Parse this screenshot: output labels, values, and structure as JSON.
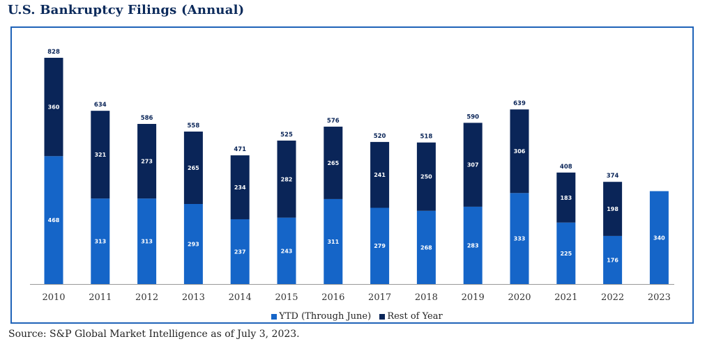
{
  "title": "U.S. Bankruptcy Filings (Annual)",
  "source": "Source: S&P Global Market Intelligence as of July 3, 2023.",
  "colors": {
    "ytd": "#1565c8",
    "rest": "#0a2558",
    "axis": "#999999",
    "label_dark": "#0a2558"
  },
  "chart_data": {
    "type": "bar",
    "stacked": true,
    "categories": [
      "2010",
      "2011",
      "2012",
      "2013",
      "2014",
      "2015",
      "2016",
      "2017",
      "2018",
      "2019",
      "2020",
      "2021",
      "2022",
      "2023"
    ],
    "series": [
      {
        "name": "YTD (Through June)",
        "values": [
          468,
          313,
          313,
          293,
          237,
          243,
          311,
          279,
          268,
          283,
          333,
          225,
          176,
          340
        ]
      },
      {
        "name": "Rest of Year",
        "values": [
          360,
          321,
          273,
          265,
          234,
          282,
          265,
          241,
          250,
          307,
          306,
          183,
          198,
          null
        ]
      }
    ],
    "totals": [
      828,
      634,
      586,
      558,
      471,
      525,
      576,
      520,
      518,
      590,
      639,
      408,
      374,
      null
    ],
    "ylim": [
      0,
      860
    ],
    "legend_position": "bottom-center",
    "grid": false
  }
}
